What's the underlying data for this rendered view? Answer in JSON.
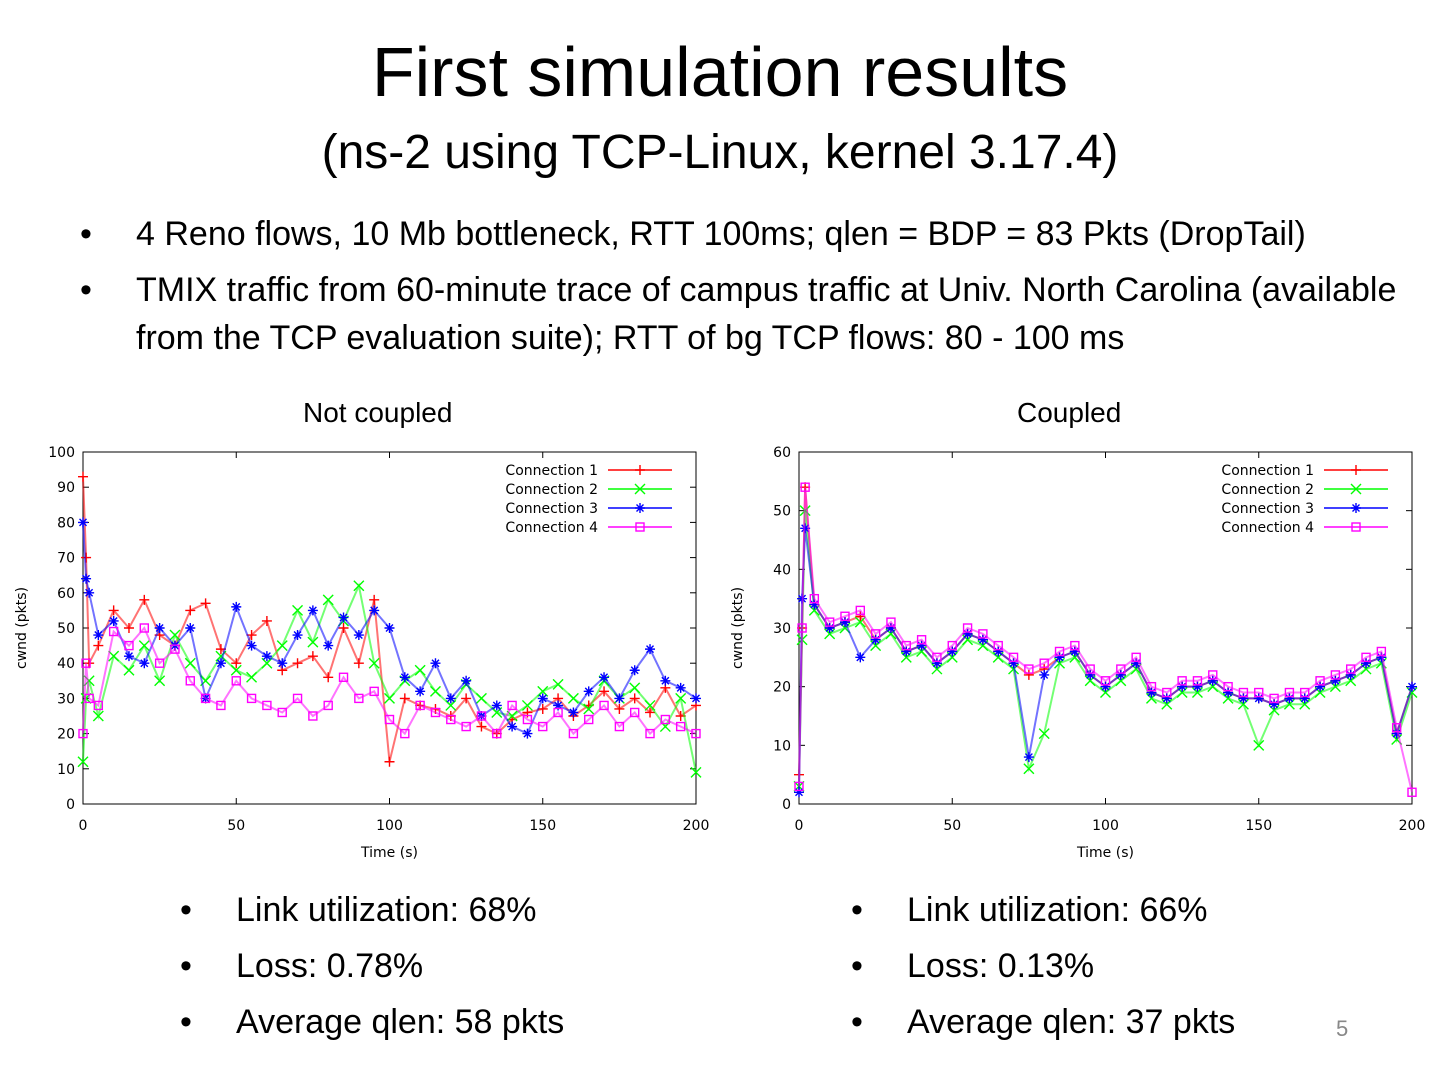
{
  "slide": {
    "title": "First simulation results",
    "subtitle": "(ns-2 using TCP-Linux, kernel 3.17.4)",
    "bullets": [
      "4 Reno flows, 10 Mb bottleneck, RTT 100ms; qlen = BDP = 83 Pkts (DropTail)",
      "TMIX traffic from  60-minute trace of campus traffic at Univ. North  Carolina (available from the TCP evaluation suite); RTT of bg TCP flows: 80 - 100 ms"
    ],
    "page_number": "5",
    "left_stats": [
      "Link utilization: 68%",
      "Loss: 0.78%",
      "Average qlen: 58 pkts"
    ],
    "right_stats": [
      "Link utilization: 66%",
      "Loss: 0.13%",
      "Average qlen: 37 pkts"
    ]
  },
  "chart_data": [
    {
      "type": "scatter",
      "title": "Not coupled",
      "xlabel": "Time (s)",
      "ylabel": "cwnd (pkts)",
      "xlim": [
        0,
        200
      ],
      "ylim": [
        0,
        100
      ],
      "xticks": [
        0,
        50,
        100,
        150,
        200
      ],
      "yticks": [
        0,
        10,
        20,
        30,
        40,
        50,
        60,
        70,
        80,
        90,
        100
      ],
      "legend_position": "top-right",
      "series": [
        {
          "name": "Connection 1",
          "color": "#ff0000",
          "marker": "plus",
          "x": [
            0,
            1,
            2,
            5,
            10,
            15,
            20,
            25,
            30,
            35,
            40,
            45,
            50,
            55,
            60,
            65,
            70,
            75,
            80,
            85,
            90,
            95,
            100,
            105,
            110,
            115,
            120,
            125,
            130,
            135,
            140,
            145,
            150,
            155,
            160,
            165,
            170,
            175,
            180,
            185,
            190,
            195,
            200
          ],
          "y": [
            93,
            70,
            40,
            45,
            55,
            50,
            58,
            48,
            45,
            55,
            57,
            44,
            40,
            48,
            52,
            38,
            40,
            42,
            36,
            50,
            40,
            58,
            12,
            30,
            28,
            27,
            25,
            30,
            22,
            20,
            24,
            26,
            27,
            30,
            25,
            28,
            32,
            27,
            30,
            26,
            33,
            25,
            28
          ]
        },
        {
          "name": "Connection 2",
          "color": "#00ff00",
          "marker": "x",
          "x": [
            0,
            1,
            2,
            5,
            10,
            15,
            20,
            25,
            30,
            35,
            40,
            45,
            50,
            55,
            60,
            65,
            70,
            75,
            80,
            85,
            90,
            95,
            100,
            105,
            110,
            115,
            120,
            125,
            130,
            135,
            140,
            145,
            150,
            155,
            160,
            165,
            170,
            175,
            180,
            185,
            190,
            195,
            200
          ],
          "y": [
            12,
            30,
            35,
            25,
            42,
            38,
            45,
            35,
            48,
            40,
            35,
            42,
            38,
            36,
            40,
            45,
            55,
            46,
            58,
            52,
            62,
            40,
            30,
            35,
            38,
            32,
            28,
            34,
            30,
            26,
            25,
            28,
            32,
            34,
            30,
            27,
            35,
            30,
            33,
            28,
            22,
            30,
            9
          ]
        },
        {
          "name": "Connection 3",
          "color": "#0000ff",
          "marker": "star",
          "x": [
            0,
            1,
            2,
            5,
            10,
            15,
            20,
            25,
            30,
            35,
            40,
            45,
            50,
            55,
            60,
            65,
            70,
            75,
            80,
            85,
            90,
            95,
            100,
            105,
            110,
            115,
            120,
            125,
            130,
            135,
            140,
            145,
            150,
            155,
            160,
            165,
            170,
            175,
            180,
            185,
            190,
            195,
            200
          ],
          "y": [
            80,
            64,
            60,
            48,
            52,
            42,
            40,
            50,
            45,
            50,
            30,
            40,
            56,
            45,
            42,
            40,
            48,
            55,
            45,
            53,
            48,
            55,
            50,
            36,
            32,
            40,
            30,
            35,
            25,
            28,
            22,
            20,
            30,
            28,
            26,
            32,
            36,
            30,
            38,
            44,
            35,
            33,
            30
          ]
        },
        {
          "name": "Connection 4",
          "color": "#ff00ff",
          "marker": "square",
          "x": [
            0,
            1,
            2,
            5,
            10,
            15,
            20,
            25,
            30,
            35,
            40,
            45,
            50,
            55,
            60,
            65,
            70,
            75,
            80,
            85,
            90,
            95,
            100,
            105,
            110,
            115,
            120,
            125,
            130,
            135,
            140,
            145,
            150,
            155,
            160,
            165,
            170,
            175,
            180,
            185,
            190,
            195,
            200
          ],
          "y": [
            20,
            40,
            30,
            28,
            49,
            45,
            50,
            40,
            44,
            35,
            30,
            28,
            35,
            30,
            28,
            26,
            30,
            25,
            28,
            36,
            30,
            32,
            24,
            20,
            28,
            26,
            24,
            22,
            25,
            20,
            28,
            24,
            22,
            26,
            20,
            24,
            28,
            22,
            26,
            20,
            24,
            22,
            20
          ]
        }
      ]
    },
    {
      "type": "scatter",
      "title": "Coupled",
      "xlabel": "Time (s)",
      "ylabel": "cwnd (pkts)",
      "xlim": [
        0,
        200
      ],
      "ylim": [
        0,
        60
      ],
      "xticks": [
        0,
        50,
        100,
        150,
        200
      ],
      "yticks": [
        0,
        10,
        20,
        30,
        40,
        50,
        60
      ],
      "legend_position": "top-right",
      "series": [
        {
          "name": "Connection 1",
          "color": "#ff0000",
          "marker": "plus",
          "x": [
            0,
            1,
            2,
            5,
            10,
            15,
            20,
            25,
            30,
            35,
            40,
            45,
            50,
            55,
            60,
            65,
            70,
            75,
            80,
            85,
            90,
            95,
            100,
            105,
            110,
            115,
            120,
            125,
            130,
            135,
            140,
            145,
            150,
            155,
            160,
            165,
            170,
            175,
            180,
            185,
            190,
            195,
            200
          ],
          "y": [
            5,
            30,
            54,
            34,
            30,
            31,
            32,
            28,
            30,
            26,
            27,
            24,
            26,
            29,
            28,
            26,
            24,
            22,
            23,
            25,
            26,
            22,
            20,
            22,
            24,
            19,
            18,
            20,
            20,
            21,
            19,
            18,
            18,
            17,
            18,
            18,
            20,
            21,
            22,
            24,
            25,
            12,
            20
          ]
        },
        {
          "name": "Connection 2",
          "color": "#00ff00",
          "marker": "x",
          "x": [
            0,
            1,
            2,
            5,
            10,
            15,
            20,
            25,
            30,
            35,
            40,
            45,
            50,
            55,
            60,
            65,
            70,
            75,
            80,
            85,
            90,
            95,
            100,
            105,
            110,
            115,
            120,
            125,
            130,
            135,
            140,
            145,
            150,
            155,
            160,
            165,
            170,
            175,
            180,
            185,
            190,
            195,
            200
          ],
          "y": [
            3,
            28,
            50,
            33,
            29,
            30,
            31,
            27,
            29,
            25,
            26,
            23,
            25,
            28,
            27,
            25,
            23,
            6,
            12,
            24,
            25,
            21,
            19,
            21,
            23,
            18,
            17,
            19,
            19,
            20,
            18,
            17,
            10,
            16,
            17,
            17,
            19,
            20,
            21,
            23,
            24,
            11,
            19
          ]
        },
        {
          "name": "Connection 3",
          "color": "#0000ff",
          "marker": "star",
          "x": [
            0,
            1,
            2,
            5,
            10,
            15,
            20,
            25,
            30,
            35,
            40,
            45,
            50,
            55,
            60,
            65,
            70,
            75,
            80,
            85,
            90,
            95,
            100,
            105,
            110,
            115,
            120,
            125,
            130,
            135,
            140,
            145,
            150,
            155,
            160,
            165,
            170,
            175,
            180,
            185,
            190,
            195,
            200
          ],
          "y": [
            2,
            35,
            47,
            34,
            30,
            31,
            25,
            28,
            30,
            26,
            27,
            24,
            26,
            29,
            28,
            26,
            24,
            8,
            22,
            25,
            26,
            22,
            20,
            22,
            24,
            19,
            18,
            20,
            20,
            21,
            19,
            18,
            18,
            17,
            18,
            18,
            20,
            21,
            22,
            24,
            25,
            12,
            20
          ]
        },
        {
          "name": "Connection 4",
          "color": "#ff00ff",
          "marker": "square",
          "x": [
            0,
            1,
            2,
            5,
            10,
            15,
            20,
            25,
            30,
            35,
            40,
            45,
            50,
            55,
            60,
            65,
            70,
            75,
            80,
            85,
            90,
            95,
            100,
            105,
            110,
            115,
            120,
            125,
            130,
            135,
            140,
            145,
            150,
            155,
            160,
            165,
            170,
            175,
            180,
            185,
            190,
            195,
            200
          ],
          "y": [
            3,
            30,
            54,
            35,
            31,
            32,
            33,
            29,
            31,
            27,
            28,
            25,
            27,
            30,
            29,
            27,
            25,
            23,
            24,
            26,
            27,
            23,
            21,
            23,
            25,
            20,
            19,
            21,
            21,
            22,
            20,
            19,
            19,
            18,
            19,
            19,
            21,
            22,
            23,
            25,
            26,
            13,
            2
          ]
        }
      ]
    }
  ]
}
